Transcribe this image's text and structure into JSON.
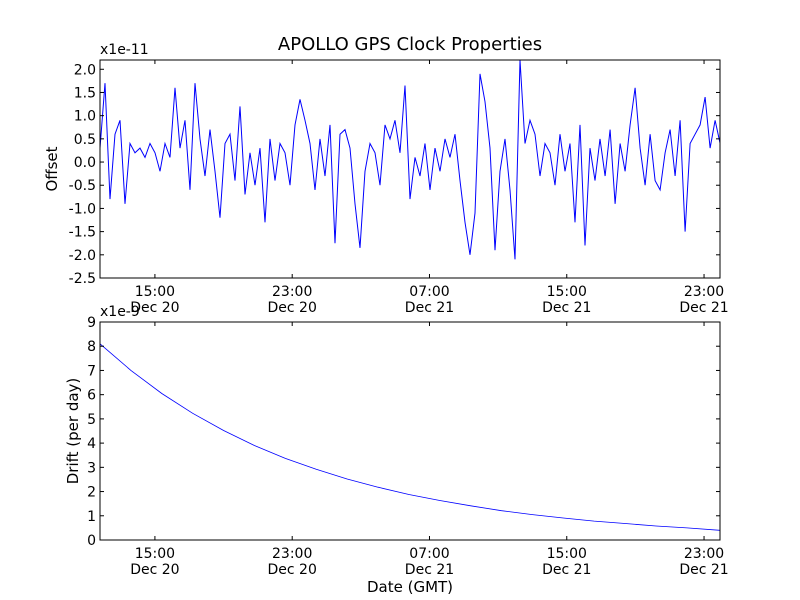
{
  "chart_data": [
    {
      "type": "line",
      "title": "APOLLO GPS Clock Properties",
      "ylabel": "Offset",
      "y_multiplier": "x1e-11",
      "ylim": [
        -2.5,
        2.2
      ],
      "yticks": [
        2.0,
        1.5,
        1.0,
        0.5,
        0.0,
        -0.5,
        -1.0,
        -1.5,
        -2.0,
        -2.5
      ],
      "ytick_labels": [
        "2.0",
        "1.5",
        "1.0",
        "0.5",
        "0.0",
        "-0.5",
        "-1.0",
        "-1.5",
        "-2.0",
        "-2.5"
      ],
      "x_units": "hours since Dec 20 00:00 GMT",
      "xlim": [
        11.8,
        47.93
      ],
      "xticks": [
        15,
        23,
        31,
        39,
        47
      ],
      "xtick_labels": [
        [
          "15:00",
          "Dec 20"
        ],
        [
          "23:00",
          "Dec 20"
        ],
        [
          "07:00",
          "Dec 21"
        ],
        [
          "15:00",
          "Dec 21"
        ],
        [
          "23:00",
          "Dec 21"
        ]
      ],
      "color": "#0000ff",
      "x_start": 11.8,
      "x_step": 0.2914,
      "values": [
        0.3,
        1.7,
        -0.8,
        0.6,
        0.9,
        -0.9,
        0.4,
        0.2,
        0.3,
        0.1,
        0.4,
        0.2,
        -0.2,
        0.4,
        0.1,
        1.6,
        0.3,
        0.9,
        -0.6,
        1.7,
        0.5,
        -0.3,
        0.7,
        -0.2,
        -1.2,
        0.4,
        0.6,
        -0.4,
        1.2,
        -0.7,
        0.2,
        -0.5,
        0.3,
        -1.3,
        0.5,
        -0.4,
        0.4,
        0.2,
        -0.5,
        0.8,
        1.35,
        0.9,
        0.4,
        -0.6,
        0.5,
        -0.3,
        0.8,
        -1.75,
        0.6,
        0.7,
        0.3,
        -0.9,
        -1.85,
        -0.2,
        0.4,
        0.2,
        -0.5,
        0.8,
        0.5,
        0.9,
        0.2,
        1.65,
        -0.8,
        0.1,
        -0.3,
        0.4,
        -0.6,
        0.3,
        -0.2,
        0.5,
        0.1,
        0.6,
        -0.4,
        -1.3,
        -2.0,
        -1.1,
        1.9,
        1.3,
        0.3,
        -1.9,
        -0.2,
        0.5,
        -0.6,
        -2.1,
        2.2,
        0.4,
        0.9,
        0.6,
        -0.3,
        0.4,
        0.2,
        -0.5,
        0.6,
        -0.2,
        0.4,
        -1.3,
        0.8,
        -1.8,
        0.3,
        -0.4,
        0.5,
        -0.3,
        0.7,
        -0.9,
        0.4,
        -0.2,
        0.8,
        1.6,
        0.3,
        -0.5,
        0.6,
        -0.4,
        -0.6,
        0.2,
        0.7,
        -0.3,
        0.9,
        -1.5,
        0.4,
        0.6,
        0.8,
        1.4,
        0.3,
        0.9,
        0.4
      ]
    },
    {
      "type": "line",
      "xlabel": "Date (GMT)",
      "ylabel": "Drift (per day)",
      "y_multiplier": "x1e-9",
      "ylim": [
        0,
        9
      ],
      "yticks": [
        0,
        1,
        2,
        3,
        4,
        5,
        6,
        7,
        8,
        9
      ],
      "ytick_labels": [
        "0",
        "1",
        "2",
        "3",
        "4",
        "5",
        "6",
        "7",
        "8",
        "9"
      ],
      "x_units": "hours since Dec 20 00:00 GMT",
      "xlim": [
        11.8,
        47.93
      ],
      "xticks": [
        15,
        23,
        31,
        39,
        47
      ],
      "xtick_labels": [
        [
          "15:00",
          "Dec 20"
        ],
        [
          "23:00",
          "Dec 20"
        ],
        [
          "07:00",
          "Dec 21"
        ],
        [
          "15:00",
          "Dec 21"
        ],
        [
          "23:00",
          "Dec 21"
        ]
      ],
      "color": "#0000ff",
      "x": [
        11.8,
        13.6,
        15.4,
        17.2,
        19.0,
        20.8,
        22.6,
        24.4,
        26.2,
        28.0,
        29.8,
        31.6,
        33.4,
        35.2,
        37.0,
        38.8,
        40.6,
        42.4,
        44.2,
        46.0,
        47.93
      ],
      "values": [
        8.1,
        7.0,
        6.05,
        5.23,
        4.52,
        3.9,
        3.37,
        2.92,
        2.52,
        2.18,
        1.88,
        1.63,
        1.41,
        1.21,
        1.05,
        0.91,
        0.78,
        0.68,
        0.58,
        0.5,
        0.4
      ]
    }
  ]
}
